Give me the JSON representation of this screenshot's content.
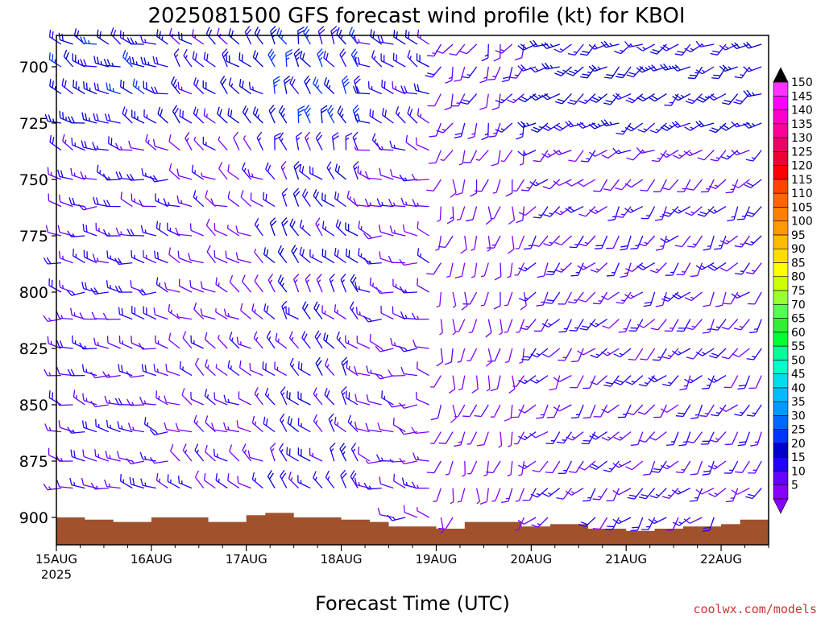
{
  "chart_data": {
    "type": "wind_profile_barbs",
    "title": "2025081500 GFS forecast wind profile (kt) for KBOI",
    "xlabel": "Forecast Time (UTC)",
    "ylabel": "",
    "credit": "coolwx.com/models",
    "x_ticks": [
      {
        "label": "15AUG",
        "sub": "2025"
      },
      {
        "label": "16AUG",
        "sub": ""
      },
      {
        "label": "17AUG",
        "sub": ""
      },
      {
        "label": "18AUG",
        "sub": ""
      },
      {
        "label": "19AUG",
        "sub": ""
      },
      {
        "label": "20AUG",
        "sub": ""
      },
      {
        "label": "21AUG",
        "sub": ""
      },
      {
        "label": "22AUG",
        "sub": ""
      }
    ],
    "x_range_days": [
      0,
      7.5
    ],
    "y_ticks": [
      "700",
      "725",
      "750",
      "775",
      "800",
      "825",
      "850",
      "875",
      "900"
    ],
    "y_range_mb": [
      910,
      688
    ],
    "levels_mb": [
      690,
      700,
      712,
      725,
      737,
      750,
      762,
      775,
      787,
      800,
      812,
      825,
      837,
      850,
      862,
      875,
      887,
      900
    ],
    "time_step_hours": 3,
    "terrain_color": "#a0522d",
    "colorbar": {
      "labels": [
        "5",
        "10",
        "15",
        "20",
        "25",
        "30",
        "35",
        "40",
        "45",
        "50",
        "55",
        "60",
        "65",
        "70",
        "75",
        "80",
        "85",
        "90",
        "95",
        "100",
        "105",
        "110",
        "115",
        "120",
        "125",
        "130",
        "135",
        "140",
        "145",
        "150"
      ],
      "colors": [
        "#8800ff",
        "#6600ff",
        "#2200ff",
        "#0000cc",
        "#0033ff",
        "#0066ff",
        "#0099ff",
        "#00bbff",
        "#00ddee",
        "#00ffcc",
        "#00ff99",
        "#00ff33",
        "#33ee33",
        "#55ff55",
        "#99ff33",
        "#ccff00",
        "#ffff00",
        "#ffdd00",
        "#ffbb00",
        "#ff9900",
        "#ff8000",
        "#ff6600",
        "#ff4400",
        "#ff0000",
        "#ee0033",
        "#ee0066",
        "#ff0099",
        "#ff00cc",
        "#ff00ff",
        "#ff33ff"
      ],
      "top_cap": "#000000"
    },
    "wind_regimes": [
      {
        "from_day": 0.0,
        "to_day": 1.2,
        "dir_deg": 280,
        "speed_kt": 15
      },
      {
        "from_day": 1.2,
        "to_day": 2.2,
        "dir_deg": 300,
        "speed_kt": 12
      },
      {
        "from_day": 2.2,
        "to_day": 3.2,
        "dir_deg": 320,
        "speed_kt": 18
      },
      {
        "from_day": 3.2,
        "to_day": 4.0,
        "dir_deg": 280,
        "speed_kt": 12
      },
      {
        "from_day": 4.0,
        "to_day": 5.0,
        "dir_deg": 190,
        "speed_kt": 8
      },
      {
        "from_day": 5.0,
        "to_day": 7.5,
        "dir_deg": 220,
        "speed_kt": 14
      }
    ]
  }
}
